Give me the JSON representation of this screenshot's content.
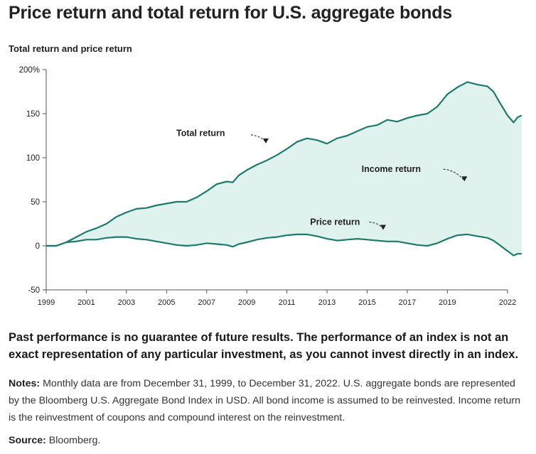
{
  "title": "Price return and total return for U.S. aggregate bonds",
  "disclaimer": "Past performance is no guarantee of future results. The performance of an index is not an exact representation of any particular investment, as you cannot invest directly in an index.",
  "notes": {
    "label": "Notes:",
    "text": "Monthly data are from December 31, 1999, to December 31, 2022. U.S. aggregate bonds are represented by the Bloomberg U.S. Aggregate Bond Index in USD. All bond income is assumed to be reinvested. Income return is the reinvestment of coupons and compound interest on the reinvestment."
  },
  "source": {
    "label": "Source:",
    "text": "Bloomberg."
  },
  "colors": {
    "line": "#1f7a6e",
    "fill": "#dff2ee",
    "axis": "#555555"
  },
  "chart_data": {
    "type": "area",
    "title": "Total return and price return",
    "xlim": [
      1999,
      2022
    ],
    "ylim": [
      -50,
      200
    ],
    "x_ticks": [
      "1999",
      "2001",
      "2003",
      "2005",
      "2007",
      "2009",
      "2011",
      "2013",
      "2015",
      "2017",
      "2019",
      "2022"
    ],
    "y_ticks": [
      "200%",
      "150",
      "100",
      "50",
      "0",
      "-50"
    ],
    "y_tick_values": [
      200,
      150,
      100,
      50,
      0,
      -50
    ],
    "annotations": [
      {
        "text": "Total return",
        "x": 2006.7,
        "y": 128
      },
      {
        "text": "Income return",
        "x": 2016.2,
        "y": 87
      },
      {
        "text": "Price return",
        "x": 2013.4,
        "y": 27
      }
    ],
    "series": [
      {
        "name": "Total return",
        "points": [
          [
            1999.0,
            0
          ],
          [
            1999.5,
            0
          ],
          [
            2000.0,
            4
          ],
          [
            2000.5,
            10
          ],
          [
            2001.0,
            16
          ],
          [
            2001.5,
            20
          ],
          [
            2002.0,
            25
          ],
          [
            2002.5,
            33
          ],
          [
            2003.0,
            38
          ],
          [
            2003.5,
            42
          ],
          [
            2004.0,
            43
          ],
          [
            2004.5,
            46
          ],
          [
            2005.0,
            48
          ],
          [
            2005.5,
            50
          ],
          [
            2006.0,
            50
          ],
          [
            2006.5,
            55
          ],
          [
            2007.0,
            62
          ],
          [
            2007.5,
            70
          ],
          [
            2008.0,
            73
          ],
          [
            2008.3,
            72
          ],
          [
            2008.6,
            80
          ],
          [
            2009.0,
            86
          ],
          [
            2009.5,
            92
          ],
          [
            2010.0,
            97
          ],
          [
            2010.5,
            103
          ],
          [
            2011.0,
            110
          ],
          [
            2011.5,
            118
          ],
          [
            2012.0,
            122
          ],
          [
            2012.5,
            120
          ],
          [
            2013.0,
            116
          ],
          [
            2013.5,
            122
          ],
          [
            2014.0,
            125
          ],
          [
            2014.5,
            130
          ],
          [
            2015.0,
            135
          ],
          [
            2015.5,
            137
          ],
          [
            2016.0,
            143
          ],
          [
            2016.5,
            141
          ],
          [
            2017.0,
            145
          ],
          [
            2017.5,
            148
          ],
          [
            2018.0,
            150
          ],
          [
            2018.5,
            158
          ],
          [
            2019.0,
            172
          ],
          [
            2019.5,
            180
          ],
          [
            2020.0,
            186
          ],
          [
            2020.5,
            183
          ],
          [
            2021.0,
            181
          ],
          [
            2021.3,
            175
          ],
          [
            2021.6,
            163
          ],
          [
            2022.0,
            148
          ],
          [
            2022.3,
            140
          ],
          [
            2022.5,
            146
          ],
          [
            2022.7,
            148
          ]
        ]
      },
      {
        "name": "Price return",
        "points": [
          [
            1999.0,
            0
          ],
          [
            1999.5,
            0
          ],
          [
            2000.0,
            4
          ],
          [
            2000.5,
            5
          ],
          [
            2001.0,
            7
          ],
          [
            2001.5,
            7
          ],
          [
            2002.0,
            9
          ],
          [
            2002.5,
            10
          ],
          [
            2003.0,
            10
          ],
          [
            2003.5,
            8
          ],
          [
            2004.0,
            7
          ],
          [
            2004.5,
            5
          ],
          [
            2005.0,
            3
          ],
          [
            2005.5,
            1
          ],
          [
            2006.0,
            0
          ],
          [
            2006.5,
            1
          ],
          [
            2007.0,
            3
          ],
          [
            2007.5,
            2
          ],
          [
            2008.0,
            1
          ],
          [
            2008.3,
            -1
          ],
          [
            2008.6,
            2
          ],
          [
            2009.0,
            4
          ],
          [
            2009.5,
            7
          ],
          [
            2010.0,
            9
          ],
          [
            2010.5,
            10
          ],
          [
            2011.0,
            12
          ],
          [
            2011.5,
            13
          ],
          [
            2012.0,
            13
          ],
          [
            2012.5,
            11
          ],
          [
            2013.0,
            8
          ],
          [
            2013.5,
            6
          ],
          [
            2014.0,
            7
          ],
          [
            2014.5,
            8
          ],
          [
            2015.0,
            7
          ],
          [
            2015.5,
            6
          ],
          [
            2016.0,
            5
          ],
          [
            2016.5,
            5
          ],
          [
            2017.0,
            3
          ],
          [
            2017.5,
            1
          ],
          [
            2018.0,
            0
          ],
          [
            2018.5,
            3
          ],
          [
            2019.0,
            8
          ],
          [
            2019.5,
            12
          ],
          [
            2020.0,
            13
          ],
          [
            2020.5,
            11
          ],
          [
            2021.0,
            9
          ],
          [
            2021.3,
            6
          ],
          [
            2021.6,
            1
          ],
          [
            2022.0,
            -6
          ],
          [
            2022.3,
            -11
          ],
          [
            2022.5,
            -9
          ],
          [
            2022.7,
            -9
          ]
        ]
      }
    ]
  }
}
